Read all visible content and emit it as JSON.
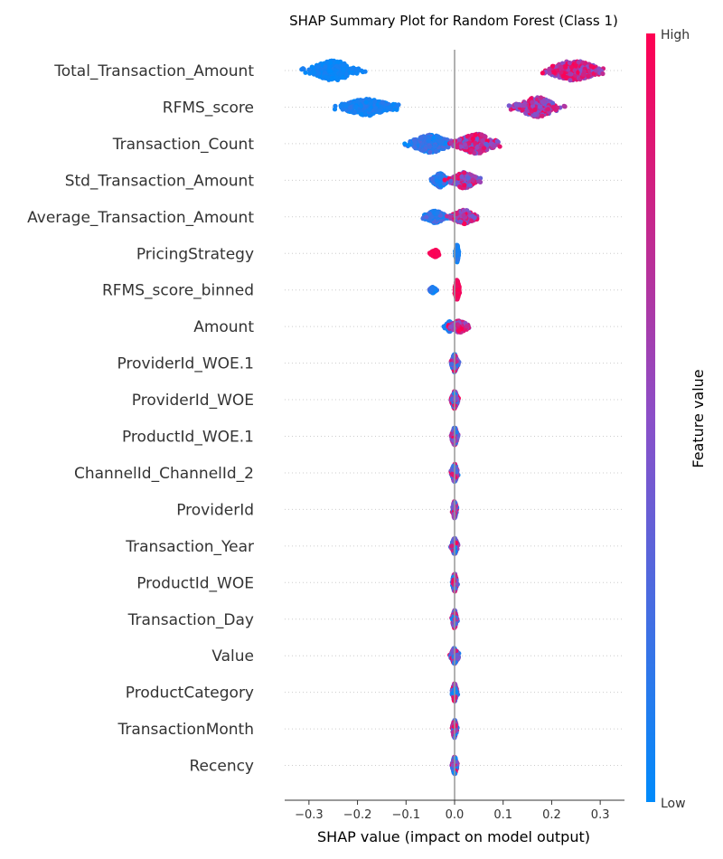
{
  "chart_data": {
    "type": "scatter",
    "title": "SHAP Summary Plot for Random Forest (Class 1)",
    "xlabel": "SHAP value (impact on model output)",
    "xlim": [
      -0.35,
      0.35
    ],
    "x_ticks": [
      -0.3,
      -0.2,
      -0.1,
      0.0,
      0.1,
      0.2,
      0.3
    ],
    "x_tick_labels": [
      "−0.3",
      "−0.2",
      "−0.1",
      "0.0",
      "0.1",
      "0.2",
      "0.3"
    ],
    "zero_line": true,
    "grid": false,
    "colorbar": {
      "label": "Feature value",
      "high_label": "High",
      "low_label": "Low",
      "low_color": "#008bfb",
      "mid_color": "#8b4fc8",
      "high_color": "#ff0052"
    },
    "features": [
      {
        "name": "Total_Transaction_Amount",
        "clusters": [
          {
            "center": -0.25,
            "spread": 0.065,
            "density": 1.0,
            "height": 1.0,
            "low": 0.0,
            "high": 0.1
          },
          {
            "center": 0.245,
            "spread": 0.075,
            "density": 1.0,
            "height": 1.0,
            "low": 0.45,
            "high": 1.0
          }
        ]
      },
      {
        "name": "RFMS_score",
        "clusters": [
          {
            "center": -0.18,
            "spread": 0.07,
            "density": 1.0,
            "height": 0.85,
            "low": 0.0,
            "high": 0.15
          },
          {
            "center": 0.17,
            "spread": 0.055,
            "density": 0.9,
            "height": 1.0,
            "low": 0.35,
            "high": 1.0
          }
        ]
      },
      {
        "name": "Transaction_Count",
        "clusters": [
          {
            "center": -0.05,
            "spread": 0.055,
            "density": 1.0,
            "height": 0.9,
            "low": 0.0,
            "high": 0.3
          },
          {
            "center": 0.045,
            "spread": 0.055,
            "density": 0.9,
            "height": 1.0,
            "low": 0.3,
            "high": 1.0
          }
        ]
      },
      {
        "name": "Std_Transaction_Amount",
        "clusters": [
          {
            "center": -0.03,
            "spread": 0.02,
            "density": 0.7,
            "height": 0.7,
            "low": 0.0,
            "high": 0.3
          },
          {
            "center": 0.02,
            "spread": 0.035,
            "density": 0.9,
            "height": 0.8,
            "low": 0.3,
            "high": 1.0
          }
        ]
      },
      {
        "name": "Average_Transaction_Amount",
        "clusters": [
          {
            "center": -0.04,
            "spread": 0.03,
            "density": 0.7,
            "height": 0.6,
            "low": 0.0,
            "high": 0.35
          },
          {
            "center": 0.02,
            "spread": 0.035,
            "density": 0.9,
            "height": 0.7,
            "low": 0.3,
            "high": 1.0
          }
        ]
      },
      {
        "name": "PricingStrategy",
        "clusters": [
          {
            "center": -0.04,
            "spread": 0.012,
            "density": 0.5,
            "height": 0.35,
            "low": 0.95,
            "high": 1.0
          },
          {
            "center": 0.005,
            "spread": 0.004,
            "density": 0.8,
            "height": 0.9,
            "low": 0.0,
            "high": 0.15
          }
        ]
      },
      {
        "name": "RFMS_score_binned",
        "clusters": [
          {
            "center": -0.045,
            "spread": 0.008,
            "density": 0.4,
            "height": 0.3,
            "low": 0.0,
            "high": 0.3
          },
          {
            "center": 0.005,
            "spread": 0.006,
            "density": 0.8,
            "height": 1.0,
            "low": 0.9,
            "high": 1.0
          }
        ]
      },
      {
        "name": "Amount",
        "clusters": [
          {
            "center": -0.01,
            "spread": 0.012,
            "density": 0.6,
            "height": 0.5,
            "low": 0.0,
            "high": 0.25
          },
          {
            "center": 0.01,
            "spread": 0.025,
            "density": 0.7,
            "height": 0.6,
            "low": 0.5,
            "high": 1.0
          }
        ]
      },
      {
        "name": "ProviderId_WOE.1",
        "clusters": [
          {
            "center": 0.0,
            "spread": 0.008,
            "density": 0.7,
            "height": 0.9,
            "low": 0.0,
            "high": 1.0
          }
        ]
      },
      {
        "name": "ProviderId_WOE",
        "clusters": [
          {
            "center": 0.0,
            "spread": 0.008,
            "density": 0.7,
            "height": 0.9,
            "low": 0.0,
            "high": 1.0
          }
        ]
      },
      {
        "name": "ProductId_WOE.1",
        "clusters": [
          {
            "center": 0.0,
            "spread": 0.008,
            "density": 0.7,
            "height": 0.9,
            "low": 0.0,
            "high": 1.0
          }
        ]
      },
      {
        "name": "ChannelId_ChannelId_2",
        "clusters": [
          {
            "center": 0.0,
            "spread": 0.008,
            "density": 0.7,
            "height": 0.9,
            "low": 0.0,
            "high": 1.0
          }
        ]
      },
      {
        "name": "ProviderId",
        "clusters": [
          {
            "center": 0.0,
            "spread": 0.005,
            "density": 0.6,
            "height": 0.9,
            "low": 0.0,
            "high": 1.0
          }
        ]
      },
      {
        "name": "Transaction_Year",
        "clusters": [
          {
            "center": 0.0,
            "spread": 0.008,
            "density": 0.6,
            "height": 0.8,
            "low": 0.0,
            "high": 1.0
          }
        ]
      },
      {
        "name": "ProductId_WOE",
        "clusters": [
          {
            "center": 0.0,
            "spread": 0.006,
            "density": 0.6,
            "height": 0.9,
            "low": 0.0,
            "high": 1.0
          }
        ]
      },
      {
        "name": "Transaction_Day",
        "clusters": [
          {
            "center": 0.0,
            "spread": 0.006,
            "density": 0.6,
            "height": 0.9,
            "low": 0.0,
            "high": 1.0
          }
        ]
      },
      {
        "name": "Value",
        "clusters": [
          {
            "center": 0.0,
            "spread": 0.01,
            "density": 0.6,
            "height": 0.8,
            "low": 0.0,
            "high": 1.0
          }
        ]
      },
      {
        "name": "ProductCategory",
        "clusters": [
          {
            "center": 0.0,
            "spread": 0.006,
            "density": 0.6,
            "height": 0.9,
            "low": 0.0,
            "high": 1.0
          }
        ]
      },
      {
        "name": "TransactionMonth",
        "clusters": [
          {
            "center": 0.0,
            "spread": 0.006,
            "density": 0.6,
            "height": 0.9,
            "low": 0.0,
            "high": 1.0
          }
        ]
      },
      {
        "name": "Recency",
        "clusters": [
          {
            "center": 0.0,
            "spread": 0.006,
            "density": 0.6,
            "height": 0.9,
            "low": 0.0,
            "high": 1.0
          }
        ]
      }
    ]
  }
}
